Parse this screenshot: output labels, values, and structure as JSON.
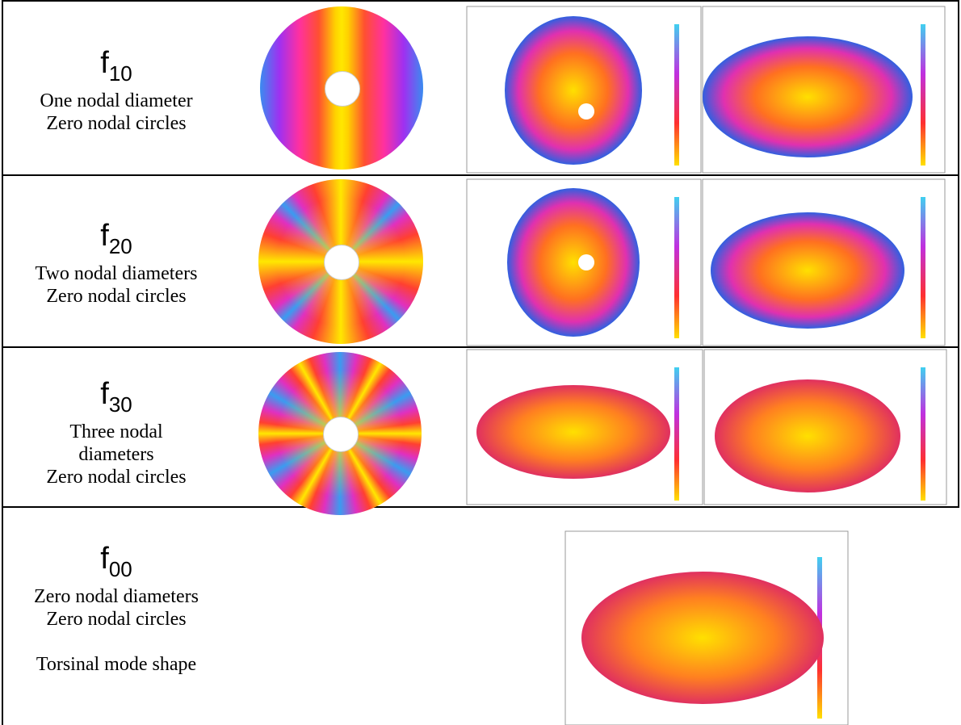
{
  "rows": [
    {
      "symbol": "f",
      "subscript": "10",
      "lines": [
        "One nodal diameter",
        "Zero nodal circles"
      ]
    },
    {
      "symbol": "f",
      "subscript": "20",
      "lines": [
        "Two nodal diameters",
        "Zero nodal circles"
      ]
    },
    {
      "symbol": "f",
      "subscript": "30",
      "lines": [
        "Three nodal",
        "diameters",
        "Zero nodal circles"
      ]
    },
    {
      "symbol": "f",
      "subscript": "00",
      "lines": [
        "Zero nodal diameters",
        "Zero nodal circles"
      ],
      "note": "Torsinal mode shape"
    }
  ]
}
